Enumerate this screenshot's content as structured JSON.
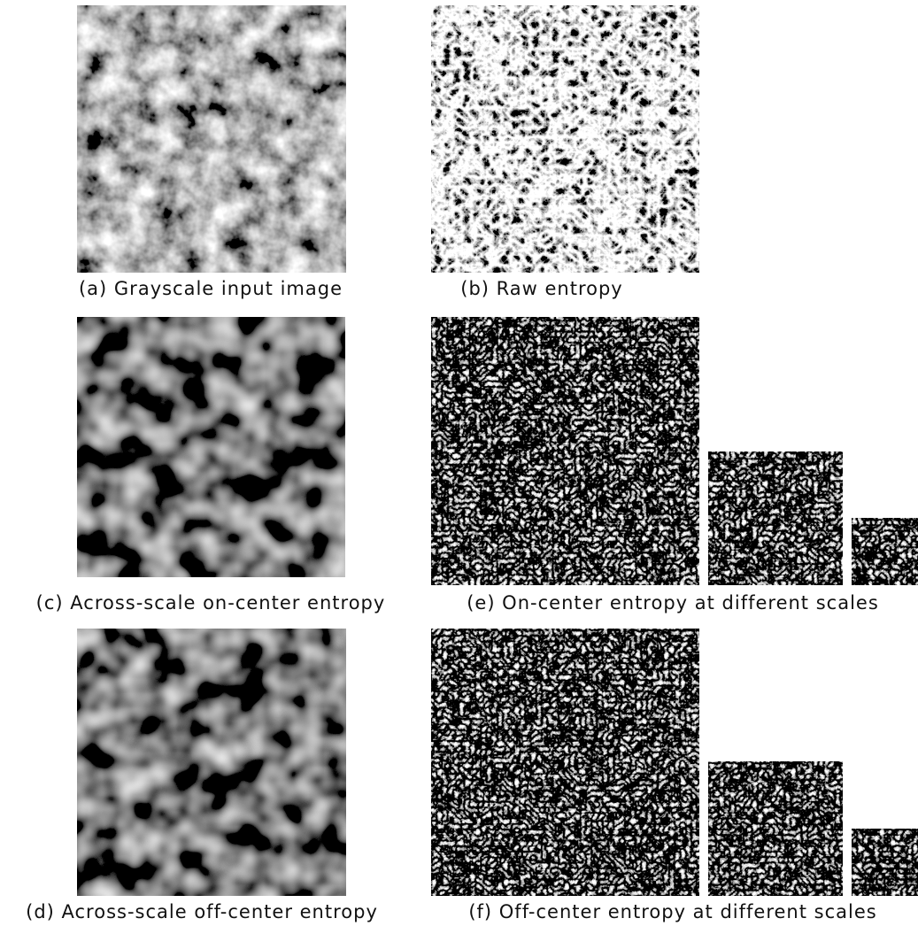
{
  "panels": [
    {
      "caption": "(a) Grayscale input image"
    },
    {
      "caption": "(b) Raw entropy"
    },
    {
      "caption": "(c) Across-scale on-center entropy"
    },
    {
      "caption": "(e) On-center entropy at different scales"
    },
    {
      "caption": "(d) Across-scale off-center entropy"
    },
    {
      "caption": "(f) Off-center entropy at different scales"
    }
  ]
}
